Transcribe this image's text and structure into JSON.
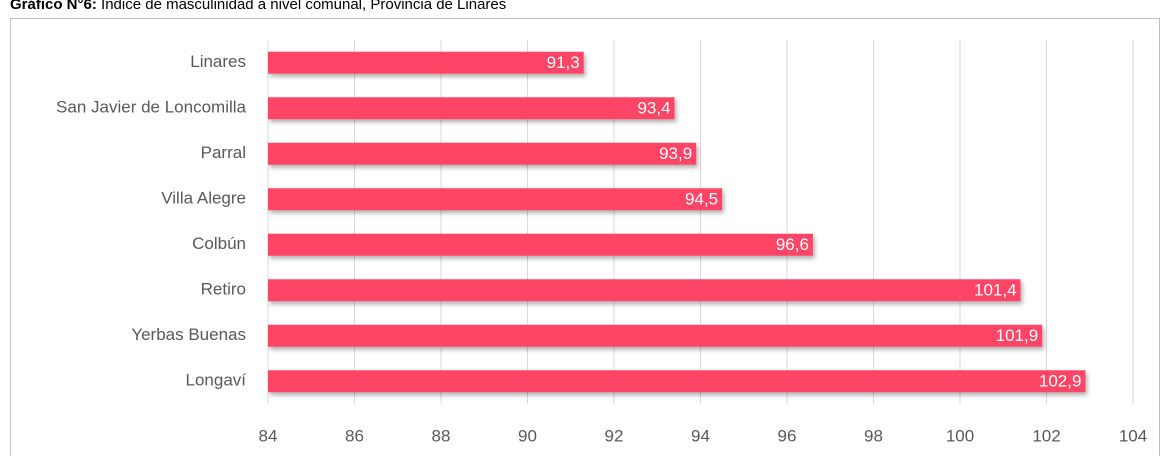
{
  "chart_data": {
    "type": "bar",
    "orientation": "horizontal",
    "title_prefix": "Gráfico N°6:",
    "title": "Índice de masculinidad a nivel comunal, Provincia de Linares",
    "categories": [
      "Linares",
      "San Javier de Loncomilla",
      "Parral",
      "Villa Alegre",
      "Colbún",
      "Retiro",
      "Yerbas Buenas",
      "Longaví"
    ],
    "values": [
      91.3,
      93.4,
      93.9,
      94.5,
      96.6,
      101.4,
      101.9,
      102.9
    ],
    "value_labels": [
      "91,3",
      "93,4",
      "93,9",
      "94,5",
      "96,6",
      "101,4",
      "101,9",
      "102,9"
    ],
    "color": "#ff4466",
    "xlim": [
      84,
      104
    ],
    "xticks": [
      84,
      86,
      88,
      90,
      92,
      94,
      96,
      98,
      100,
      102,
      104
    ],
    "grid": true
  }
}
